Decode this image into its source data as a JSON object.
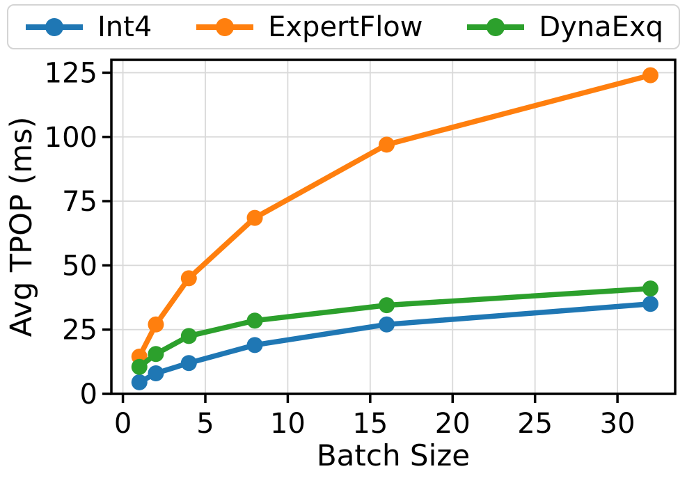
{
  "chart_data": {
    "type": "line",
    "x": [
      1,
      2,
      4,
      8,
      16,
      32
    ],
    "series": [
      {
        "name": "Int4",
        "color": "#1f77b4",
        "values": [
          4.5,
          8,
          12,
          19,
          27,
          35
        ]
      },
      {
        "name": "ExpertFlow",
        "color": "#ff7f0e",
        "values": [
          14.5,
          27,
          45,
          68.5,
          97,
          124
        ]
      },
      {
        "name": "DynaExq",
        "color": "#2ca02c",
        "values": [
          10.5,
          15.5,
          22.5,
          28.5,
          34.5,
          41
        ]
      }
    ],
    "title": "",
    "xlabel": "Batch Size",
    "ylabel": "Avg TPOP (ms)",
    "xticks": [
      0,
      5,
      10,
      15,
      20,
      25,
      30
    ],
    "yticks": [
      0,
      25,
      50,
      75,
      100,
      125
    ],
    "xlim": [
      -0.7,
      33.5
    ],
    "ylim": [
      0,
      130
    ],
    "grid": true,
    "legend_position": "top-horizontal"
  },
  "styles": {
    "grid_color": "#d9d9d9",
    "axis_color": "#000000",
    "tick_label_color": "#000000",
    "background": "#ffffff",
    "legend_border": "#d4d4d4"
  }
}
